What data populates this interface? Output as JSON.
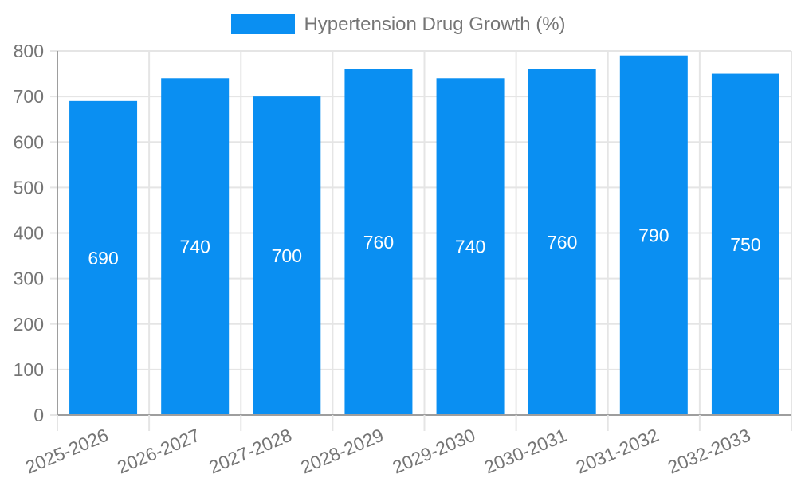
{
  "chart_data": {
    "type": "bar",
    "title": "",
    "legend_position": "top",
    "categories": [
      "2025-2026",
      "2026-2027",
      "2027-2028",
      "2028-2029",
      "2029-2030",
      "2030-2031",
      "2031-2032",
      "2032-2033"
    ],
    "series": [
      {
        "name": "Hypertension Drug Growth (%)",
        "values": [
          690,
          740,
          700,
          760,
          740,
          760,
          790,
          750
        ]
      }
    ],
    "value_labels": [
      "690",
      "740",
      "700",
      "760",
      "740",
      "760",
      "790",
      "750"
    ],
    "xlabel": "",
    "ylabel": "",
    "ylim": [
      0,
      800
    ],
    "yticks": [
      0,
      100,
      200,
      300,
      400,
      500,
      600,
      700,
      800
    ],
    "grid": true,
    "x_label_rotation_deg": -23,
    "colors": {
      "bar": "#0A8FF2",
      "value_label": "#FFFFFF",
      "grid_line": "#E5E5E5",
      "axis_line": "#9E9E9E",
      "tick_text": "#757575",
      "legend_text": "#757575",
      "background": "#FFFFFF"
    }
  }
}
